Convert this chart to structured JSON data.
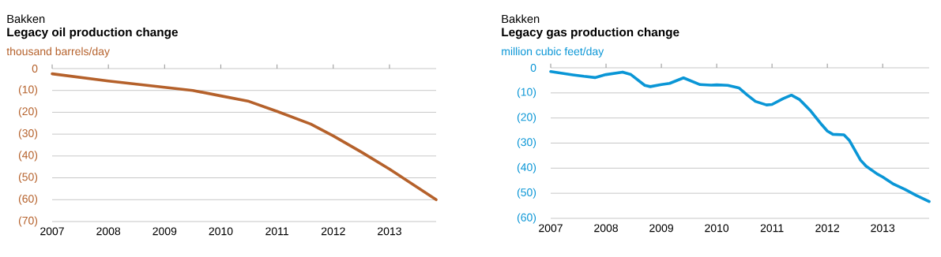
{
  "chart_data": [
    {
      "type": "line",
      "title": "Bakken",
      "subtitle": "Legacy oil production change",
      "ylabel": "thousand barrels/day",
      "x": [
        2007,
        2008,
        2009,
        2009.5,
        2010,
        2010.5,
        2011,
        2011.6,
        2012,
        2012.5,
        2013,
        2013.83
      ],
      "series": [
        {
          "color": "#b5612b",
          "values": [
            -2.4,
            -5.7,
            -8.6,
            -10,
            -12.5,
            -15,
            -19.6,
            -25.4,
            -30.8,
            -38.2,
            -46,
            -60
          ]
        }
      ],
      "xlim": [
        2007,
        2013.83
      ],
      "ylim": [
        -70,
        0
      ],
      "xticks": [
        2007,
        2008,
        2009,
        2010,
        2011,
        2012,
        2013
      ],
      "yticks": [
        0,
        {
          "value": -10,
          "label": "(10)"
        },
        {
          "value": -20,
          "label": "(20)"
        },
        {
          "value": -30,
          "label": "(30)"
        },
        {
          "value": -40,
          "label": "(40)"
        },
        {
          "value": -50,
          "label": "(50)"
        },
        {
          "value": -60,
          "label": "(60)"
        },
        {
          "value": -70,
          "label": "(70)"
        }
      ],
      "grid": "y"
    },
    {
      "type": "line",
      "title": "Bakken",
      "subtitle": "Legacy gas production change",
      "ylabel": "million cubic feet/day",
      "x": [
        2007,
        2007.4,
        2007.6,
        2007.8,
        2008,
        2008.3,
        2008.45,
        2008.7,
        2008.8,
        2009,
        2009.15,
        2009.4,
        2009.7,
        2009.9,
        2010,
        2010.2,
        2010.4,
        2010.55,
        2010.7,
        2010.9,
        2011,
        2011.2,
        2011.35,
        2011.5,
        2011.7,
        2011.9,
        2012,
        2012.1,
        2012.3,
        2012.4,
        2012.6,
        2012.7,
        2012.9,
        2013,
        2013.2,
        2013.4,
        2013.6,
        2013.84
      ],
      "series": [
        {
          "color": "#0a96d6",
          "values": [
            -1.5,
            -2.8,
            -3.4,
            -3.9,
            -2.7,
            -1.7,
            -2.7,
            -7,
            -7.5,
            -6.7,
            -6.2,
            -4,
            -6.7,
            -6.9,
            -6.8,
            -7,
            -8,
            -10.8,
            -13.4,
            -14.8,
            -14.6,
            -12.3,
            -10.9,
            -12.7,
            -17.2,
            -22.7,
            -25.2,
            -26.5,
            -26.7,
            -29,
            -36.8,
            -39.2,
            -42.3,
            -43.5,
            -46.4,
            -48.4,
            -50.8,
            -53.3
          ]
        }
      ],
      "xlim": [
        2007,
        2013.84
      ],
      "ylim": [
        -60,
        0
      ],
      "xticks": [
        2007,
        2008,
        2009,
        2010,
        2011,
        2012,
        2013
      ],
      "yticks": [
        0,
        {
          "value": -10,
          "label": "(10)"
        },
        {
          "value": -20,
          "label": "(20)"
        },
        {
          "value": -30,
          "label": "(30)"
        },
        {
          "value": -40,
          "label": "(40)"
        },
        {
          "value": -50,
          "label": "(50)"
        },
        {
          "value": -60,
          "label": "(60)"
        }
      ],
      "grid": "y"
    }
  ]
}
